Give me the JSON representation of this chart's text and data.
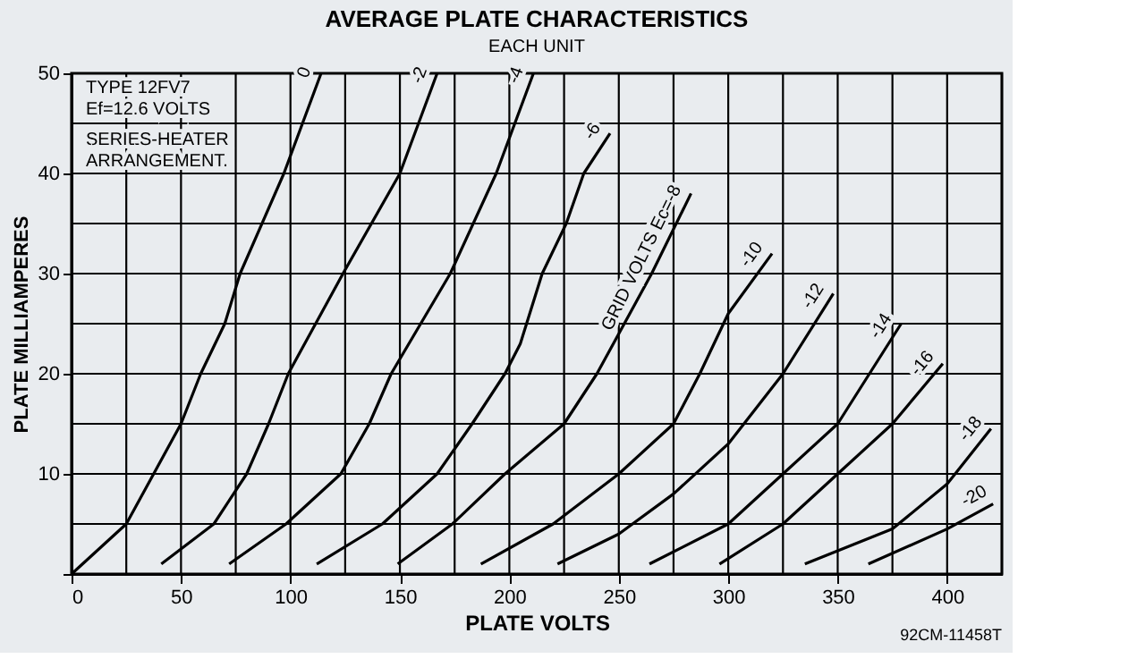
{
  "chart_data": {
    "type": "line",
    "title": "AVERAGE PLATE CHARACTERISTICS",
    "subtitle": "EACH UNIT",
    "xlabel": "PLATE VOLTS",
    "ylabel": "PLATE MILLIAMPERES",
    "xlim": [
      0,
      425
    ],
    "ylim": [
      0,
      50
    ],
    "xticks": [
      0,
      {
        "value": 25,
        "label": null
      },
      50,
      {
        "value": 75,
        "label": null
      },
      100,
      {
        "value": 125,
        "label": null
      },
      150,
      {
        "value": 175,
        "label": null
      },
      200,
      {
        "value": 225,
        "label": null
      },
      250,
      {
        "value": 275,
        "label": null
      },
      300,
      {
        "value": 325,
        "label": null
      },
      350,
      {
        "value": 375,
        "label": null
      },
      400,
      {
        "value": 425,
        "label": null
      }
    ],
    "yticks": [
      {
        "value": 0,
        "label": null
      },
      {
        "value": 5,
        "label": null
      },
      10,
      {
        "value": 15,
        "label": null
      },
      20,
      {
        "value": 25,
        "label": null
      },
      30,
      {
        "value": 35,
        "label": null
      },
      40,
      {
        "value": 45,
        "label": null
      },
      50
    ],
    "grid": true,
    "legend": false,
    "marker": "none",
    "line_style": "solid",
    "annotations": [
      "TYPE 12FV7",
      "Ef=12.6 VOLTS",
      "SERIES-HEATER",
      "ARRANGEMENT.",
      "92CM-11458T"
    ],
    "series": [
      {
        "name": "0",
        "color": "#000000",
        "x": [
          0,
          25,
          50,
          59,
          70,
          77,
          97,
          114
        ],
        "values": [
          0,
          5,
          15,
          20,
          25,
          30,
          40,
          50
        ]
      },
      {
        "name": "-2",
        "color": "#000000",
        "x": [
          41,
          65,
          80,
          90,
          99,
          124,
          150,
          167
        ],
        "values": [
          1,
          5,
          10,
          15,
          20,
          30,
          40,
          50
        ]
      },
      {
        "name": "-4",
        "color": "#000000",
        "x": [
          72,
          98,
          123,
          136,
          146,
          173,
          194,
          211
        ],
        "values": [
          1,
          5,
          10,
          15,
          20,
          30,
          40,
          50
        ]
      },
      {
        "name": "-6",
        "color": "#000000",
        "x": [
          112,
          142,
          167,
          183,
          198,
          205,
          215,
          226,
          234,
          246
        ],
        "values": [
          1,
          5,
          10,
          15,
          20,
          23,
          30,
          35,
          40,
          44
        ]
      },
      {
        "name": "GRID VOLTS Ec=-8",
        "color": "#000000",
        "x": [
          149,
          174,
          198,
          225,
          240,
          250,
          265,
          283
        ],
        "values": [
          1,
          5,
          10,
          15,
          20,
          24,
          30,
          38
        ]
      },
      {
        "name": "-10",
        "color": "#000000",
        "x": [
          187,
          220,
          250,
          275,
          287,
          300,
          320
        ],
        "values": [
          1,
          5,
          10,
          15,
          20,
          26,
          32
        ]
      },
      {
        "name": "-12",
        "color": "#000000",
        "x": [
          222,
          250,
          275,
          300,
          325,
          348
        ],
        "values": [
          1,
          4,
          8,
          13,
          20,
          28
        ]
      },
      {
        "name": "-14",
        "color": "#000000",
        "x": [
          264,
          300,
          325,
          350,
          379
        ],
        "values": [
          1,
          5,
          10,
          15,
          25
        ]
      },
      {
        "name": "-16",
        "color": "#000000",
        "x": [
          296,
          325,
          350,
          375,
          398
        ],
        "values": [
          1,
          5,
          10,
          15,
          21
        ]
      },
      {
        "name": "-18",
        "color": "#000000",
        "x": [
          335,
          375,
          400,
          420
        ],
        "values": [
          1,
          4.5,
          9,
          14.5
        ]
      },
      {
        "name": "-20",
        "color": "#000000",
        "x": [
          364,
          400,
          421
        ],
        "values": [
          1,
          4.5,
          7
        ]
      }
    ]
  }
}
